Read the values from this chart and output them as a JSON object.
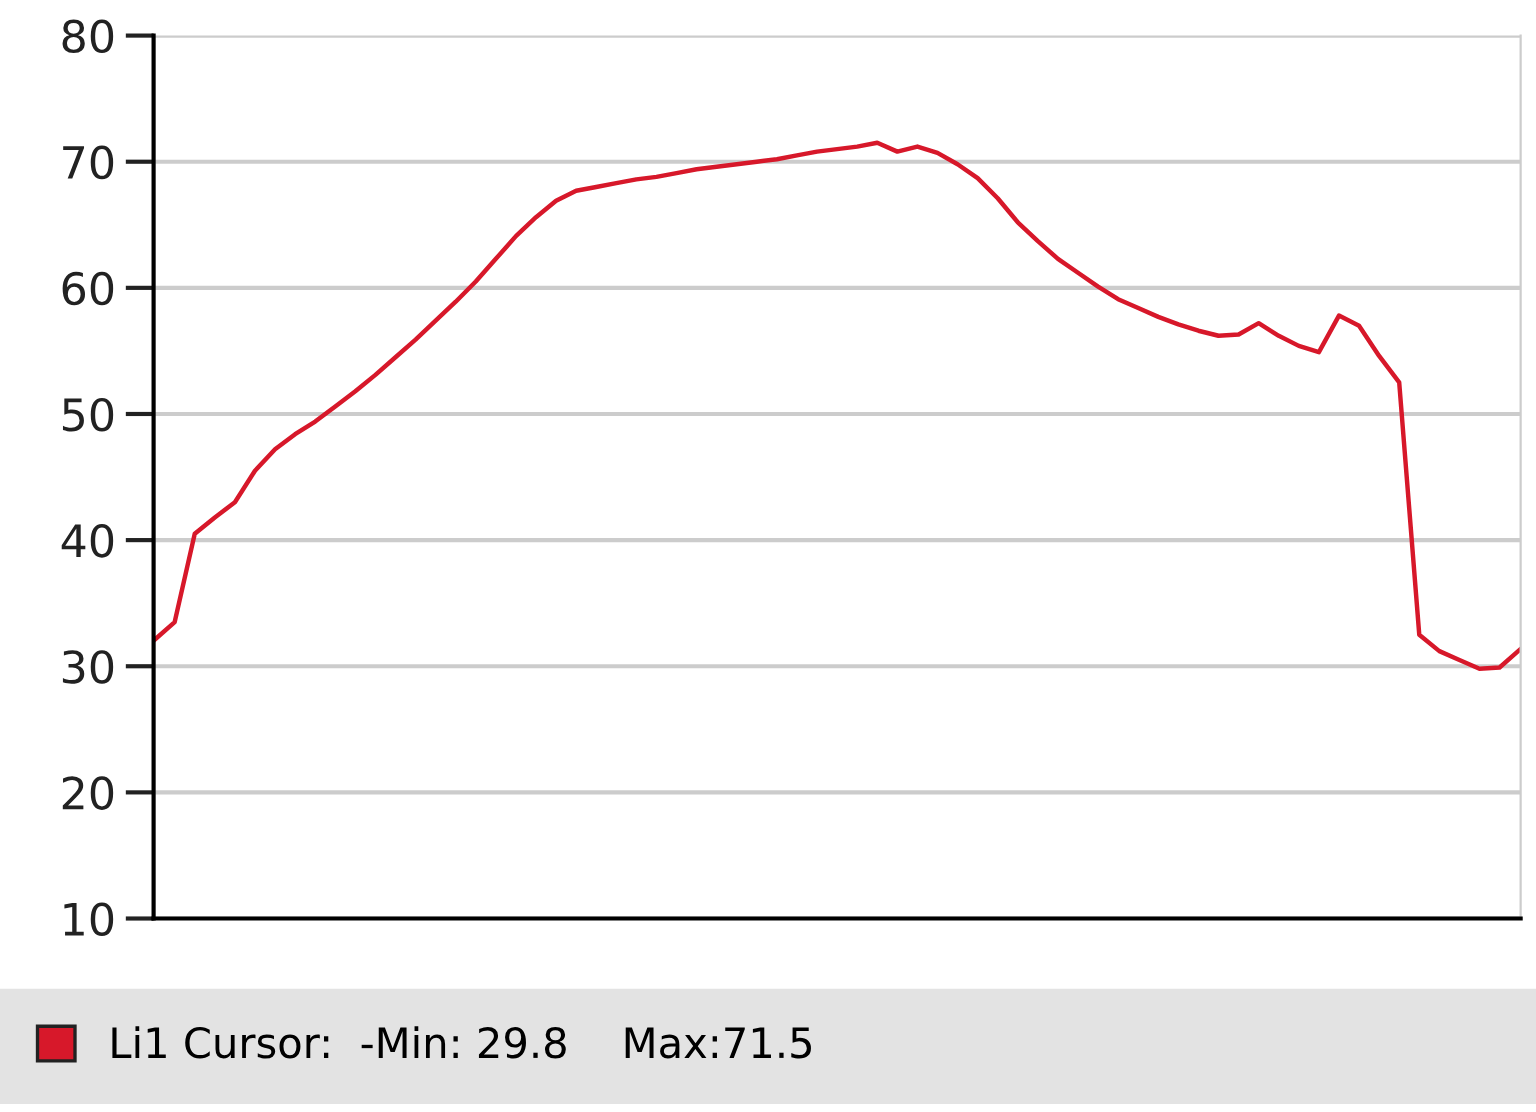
{
  "chart_data": {
    "type": "line",
    "categories": [
      null,
      null,
      null,
      null,
      null,
      null,
      null,
      null,
      null,
      null,
      null,
      null,
      null,
      null,
      null,
      null,
      null,
      null,
      null,
      null,
      null,
      null,
      null,
      null,
      null,
      null,
      null,
      null,
      null,
      null,
      null,
      null,
      null,
      null,
      null,
      null,
      null,
      null,
      null,
      null,
      null,
      null,
      null,
      null,
      null,
      null,
      null,
      null,
      null,
      null,
      null,
      null,
      null,
      null,
      null,
      null,
      null,
      null,
      null,
      null,
      null,
      null,
      null,
      null,
      null,
      null,
      null,
      null,
      null
    ],
    "series": [
      {
        "name": "Li1 Cursor:  -Min: 29.8    Max:71.5",
        "color": "#d7182a",
        "values": [
          32.1,
          33.5,
          40.5,
          41.8,
          43.0,
          45.5,
          47.2,
          48.4,
          49.4,
          50.6,
          51.8,
          53.1,
          54.5,
          55.9,
          57.4,
          58.9,
          60.5,
          62.3,
          64.1,
          65.6,
          66.9,
          67.7,
          68.0,
          68.3,
          68.6,
          68.8,
          69.1,
          69.4,
          69.6,
          69.8,
          70.0,
          70.2,
          70.5,
          70.8,
          71.0,
          71.2,
          71.5,
          70.8,
          71.2,
          70.7,
          69.8,
          68.7,
          67.1,
          65.2,
          63.7,
          62.3,
          61.2,
          60.1,
          59.1,
          58.4,
          57.7,
          57.1,
          56.6,
          56.2,
          56.3,
          57.2,
          56.2,
          55.4,
          54.9,
          57.8,
          57.0,
          54.6,
          52.5,
          32.5,
          31.2,
          30.5,
          29.8,
          29.9,
          31.3
        ]
      }
    ],
    "ylim": [
      10,
      80
    ],
    "yticks": [
      10,
      20,
      30,
      40,
      50,
      60,
      70,
      80
    ],
    "grid": "y",
    "legend": "bottom",
    "tick_labels": "y"
  }
}
